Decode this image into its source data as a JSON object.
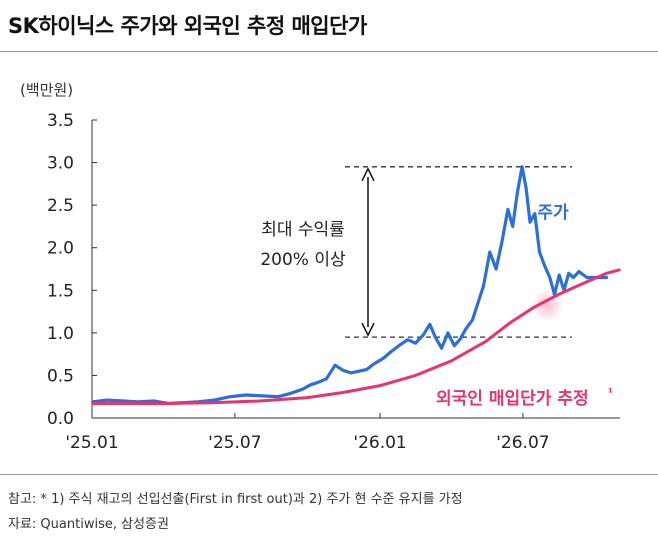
{
  "title": "SK하이닉스 주가와 외국인 추정 매입단가",
  "chart_data": {
    "type": "line",
    "unit_label": "(백만원)",
    "ylim": [
      0,
      3.5
    ],
    "y_ticks": [
      "0.0",
      "0.5",
      "1.0",
      "1.5",
      "2.0",
      "2.5",
      "3.0",
      "3.5"
    ],
    "x_ticks": [
      "'25.01",
      "'25.07",
      "'26.01",
      "'26.07"
    ],
    "grid": false,
    "series": [
      {
        "name": "주가",
        "color": "#2a6fdb",
        "points": [
          [
            "2025-01-02",
            0.19
          ],
          [
            "2025-01-20",
            0.21
          ],
          [
            "2025-02-10",
            0.2
          ],
          [
            "2025-03-01",
            0.19
          ],
          [
            "2025-03-20",
            0.2
          ],
          [
            "2025-04-08",
            0.17
          ],
          [
            "2025-04-25",
            0.18
          ],
          [
            "2025-05-15",
            0.19
          ],
          [
            "2025-06-05",
            0.21
          ],
          [
            "2025-06-25",
            0.25
          ],
          [
            "2025-07-15",
            0.27
          ],
          [
            "2025-08-05",
            0.26
          ],
          [
            "2025-08-25",
            0.25
          ],
          [
            "2025-09-10",
            0.29
          ],
          [
            "2025-09-25",
            0.34
          ],
          [
            "2025-10-05",
            0.39
          ],
          [
            "2025-10-15",
            0.42
          ],
          [
            "2025-10-25",
            0.46
          ],
          [
            "2025-11-05",
            0.62
          ],
          [
            "2025-11-15",
            0.56
          ],
          [
            "2025-11-25",
            0.53
          ],
          [
            "2025-12-05",
            0.55
          ],
          [
            "2025-12-15",
            0.57
          ],
          [
            "2025-12-25",
            0.64
          ],
          [
            "2026-01-05",
            0.7
          ],
          [
            "2026-01-15",
            0.78
          ],
          [
            "2026-01-25",
            0.85
          ],
          [
            "2026-02-05",
            0.92
          ],
          [
            "2026-02-15",
            0.88
          ],
          [
            "2026-02-25",
            0.98
          ],
          [
            "2026-03-05",
            1.1
          ],
          [
            "2026-03-12",
            0.95
          ],
          [
            "2026-03-20",
            0.82
          ],
          [
            "2026-03-28",
            1.0
          ],
          [
            "2026-04-05",
            0.85
          ],
          [
            "2026-04-12",
            0.92
          ],
          [
            "2026-04-20",
            1.05
          ],
          [
            "2026-04-28",
            1.15
          ],
          [
            "2026-05-05",
            1.35
          ],
          [
            "2026-05-12",
            1.55
          ],
          [
            "2026-05-20",
            1.95
          ],
          [
            "2026-05-28",
            1.75
          ],
          [
            "2026-06-04",
            2.05
          ],
          [
            "2026-06-12",
            2.45
          ],
          [
            "2026-06-18",
            2.25
          ],
          [
            "2026-06-24",
            2.65
          ],
          [
            "2026-06-30",
            2.95
          ],
          [
            "2026-07-05",
            2.7
          ],
          [
            "2026-07-10",
            2.3
          ],
          [
            "2026-07-16",
            2.4
          ],
          [
            "2026-07-22",
            1.95
          ],
          [
            "2026-07-28",
            1.8
          ],
          [
            "2026-08-04",
            1.65
          ],
          [
            "2026-08-10",
            1.45
          ],
          [
            "2026-08-16",
            1.68
          ],
          [
            "2026-08-22",
            1.5
          ],
          [
            "2026-08-28",
            1.7
          ],
          [
            "2026-09-03",
            1.65
          ],
          [
            "2026-09-10",
            1.72
          ],
          [
            "2026-09-20",
            1.65
          ],
          [
            "2026-10-15",
            1.65
          ]
        ]
      },
      {
        "name": "외국인 매입단가 추정",
        "name_marker": "¹",
        "color": "#e8336d",
        "points": [
          [
            "2025-01-02",
            0.17
          ],
          [
            "2025-04-01",
            0.17
          ],
          [
            "2025-06-01",
            0.18
          ],
          [
            "2025-08-01",
            0.2
          ],
          [
            "2025-10-01",
            0.24
          ],
          [
            "2025-11-15",
            0.3
          ],
          [
            "2026-01-01",
            0.38
          ],
          [
            "2026-02-15",
            0.5
          ],
          [
            "2026-04-01",
            0.67
          ],
          [
            "2026-05-15",
            0.9
          ],
          [
            "2026-06-15",
            1.12
          ],
          [
            "2026-07-15",
            1.3
          ],
          [
            "2026-08-15",
            1.45
          ],
          [
            "2026-09-15",
            1.58
          ],
          [
            "2026-10-15",
            1.7
          ],
          [
            "2026-10-31",
            1.74
          ]
        ]
      }
    ],
    "annotation": {
      "lines": [
        "최대 수익률",
        "200% 이상"
      ],
      "from": 0.95,
      "to": 2.95
    }
  },
  "footer": {
    "note": "참고: * 1) 주식 재고의 선입선출(First in first out)과 2) 주가 현 수준 유지를 가정",
    "source": "자료: Quantiwise, 삼성증권"
  }
}
